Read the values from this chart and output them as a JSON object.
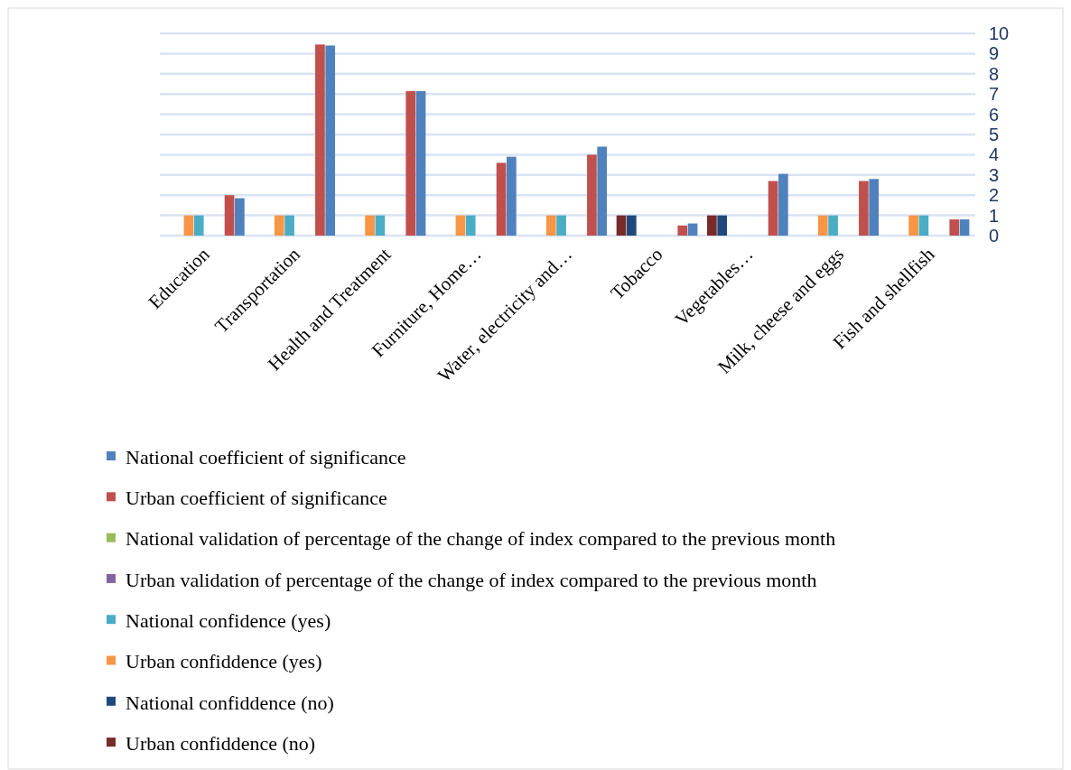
{
  "chart_data": {
    "type": "bar",
    "categories": [
      "Education",
      "Transportation",
      "Health and Treatment",
      "Furniture, Home…",
      "Water, electricity and…",
      "Tobacco",
      "Vegetables…",
      "Milk, cheese and eggs",
      "Fish and shellfish"
    ],
    "series": [
      {
        "name": "National coefficient of significance",
        "color": "#4f81bd",
        "values": [
          1.85,
          9.4,
          7.15,
          3.9,
          4.4,
          0.6,
          3.05,
          2.8,
          0.8
        ]
      },
      {
        "name": "Urban coefficient of significance",
        "color": "#c0504d",
        "values": [
          2.0,
          9.45,
          7.15,
          3.6,
          4.0,
          0.5,
          2.7,
          2.7,
          0.8
        ]
      },
      {
        "name": "National validation of percentage of the change of index compared to the previous month",
        "color": "#9bbb59",
        "values": [
          null,
          null,
          null,
          null,
          null,
          null,
          null,
          null,
          null
        ]
      },
      {
        "name": "Urban validation of percentage of the change of index compared to the previous month",
        "color": "#8064a2",
        "values": [
          null,
          null,
          null,
          null,
          null,
          null,
          null,
          null,
          null
        ]
      },
      {
        "name": "National confidence (yes)",
        "color": "#4bacc6",
        "values": [
          1,
          1,
          1,
          1,
          1,
          null,
          null,
          1,
          1
        ]
      },
      {
        "name": "Urban confiddence (yes)",
        "color": "#f79646",
        "values": [
          1,
          1,
          1,
          1,
          1,
          null,
          null,
          1,
          1
        ]
      },
      {
        "name": "National confiddence (no)",
        "color": "#1f497d",
        "values": [
          null,
          null,
          null,
          null,
          null,
          1,
          1,
          null,
          null
        ]
      },
      {
        "name": "Urban confiddence (no)",
        "color": "#772c2a",
        "values": [
          null,
          null,
          null,
          null,
          null,
          1,
          1,
          null,
          null
        ]
      }
    ],
    "ylim": [
      0,
      10
    ],
    "yticks": [
      0,
      1,
      2,
      3,
      4,
      5,
      6,
      7,
      8,
      9,
      10
    ],
    "grid": "y",
    "legend": "bottom"
  }
}
